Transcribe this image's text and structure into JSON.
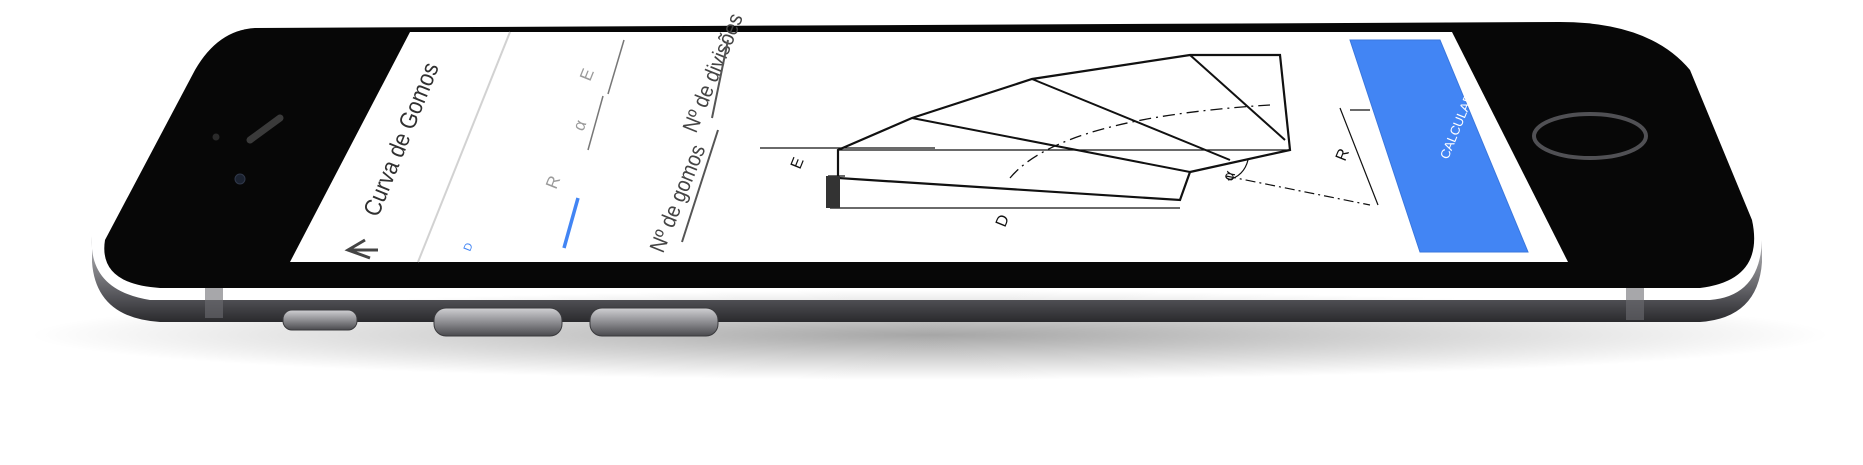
{
  "app": {
    "title": "Curva de Gomos",
    "back_icon": "arrow-left-icon"
  },
  "tabs": [
    {
      "label": "D",
      "active": true
    },
    {
      "label": "R",
      "active": false
    },
    {
      "label": "α",
      "active": false
    },
    {
      "label": "E",
      "active": false
    }
  ],
  "fields": {
    "gomos_label": "Nº de gomos",
    "divisoes_label": "Nº de divisões"
  },
  "diagram": {
    "label_E": "E",
    "label_D": "D",
    "label_R": "R",
    "label_alpha": "α"
  },
  "actions": {
    "calcular_label": "CALCULAR"
  },
  "colors": {
    "accent": "#4285f4",
    "tab_active": "#4285f4",
    "phone_body": "#0a0a0a",
    "phone_frame": "#8c8c90",
    "screen_bg": "#ffffff"
  }
}
